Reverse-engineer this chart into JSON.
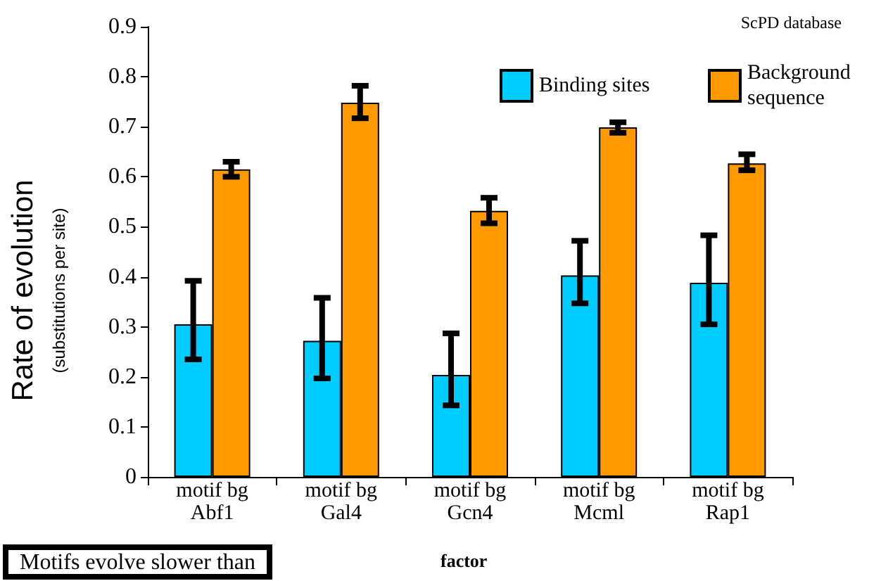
{
  "chart_data": {
    "type": "bar",
    "ylabel": "Rate of evolution\n(substitutions per site)",
    "categories": [
      "motif bg\nAbf1",
      "motif bg\nGal4",
      "motif bg\nGcn4",
      "motif bg\nMcml",
      "motif bg\nRap1"
    ],
    "series": [
      {
        "name": "Binding sites",
        "color": "#00ccff",
        "values": [
          0.305,
          0.272,
          0.204,
          0.403,
          0.388
        ],
        "errors": [
          [
            0.235,
            0.392
          ],
          [
            0.197,
            0.358
          ],
          [
            0.143,
            0.287
          ],
          [
            0.347,
            0.472
          ],
          [
            0.305,
            0.483
          ]
        ]
      },
      {
        "name": "Background sequence",
        "color": "#ff9900",
        "values": [
          0.615,
          0.748,
          0.532,
          0.699,
          0.627
        ],
        "errors": [
          [
            0.6,
            0.63
          ],
          [
            0.717,
            0.782
          ],
          [
            0.507,
            0.558
          ],
          [
            0.688,
            0.709
          ],
          [
            0.613,
            0.645
          ]
        ]
      }
    ],
    "ylim": [
      0,
      0.9
    ],
    "yticks": [
      0,
      0.1,
      0.2,
      0.3,
      0.4,
      0.5,
      0.6,
      0.7,
      0.8,
      0.9
    ],
    "grid": false,
    "legend": "top right",
    "annotations": [
      "ScPD database",
      "factor",
      "Motifs evolve slower than"
    ]
  }
}
